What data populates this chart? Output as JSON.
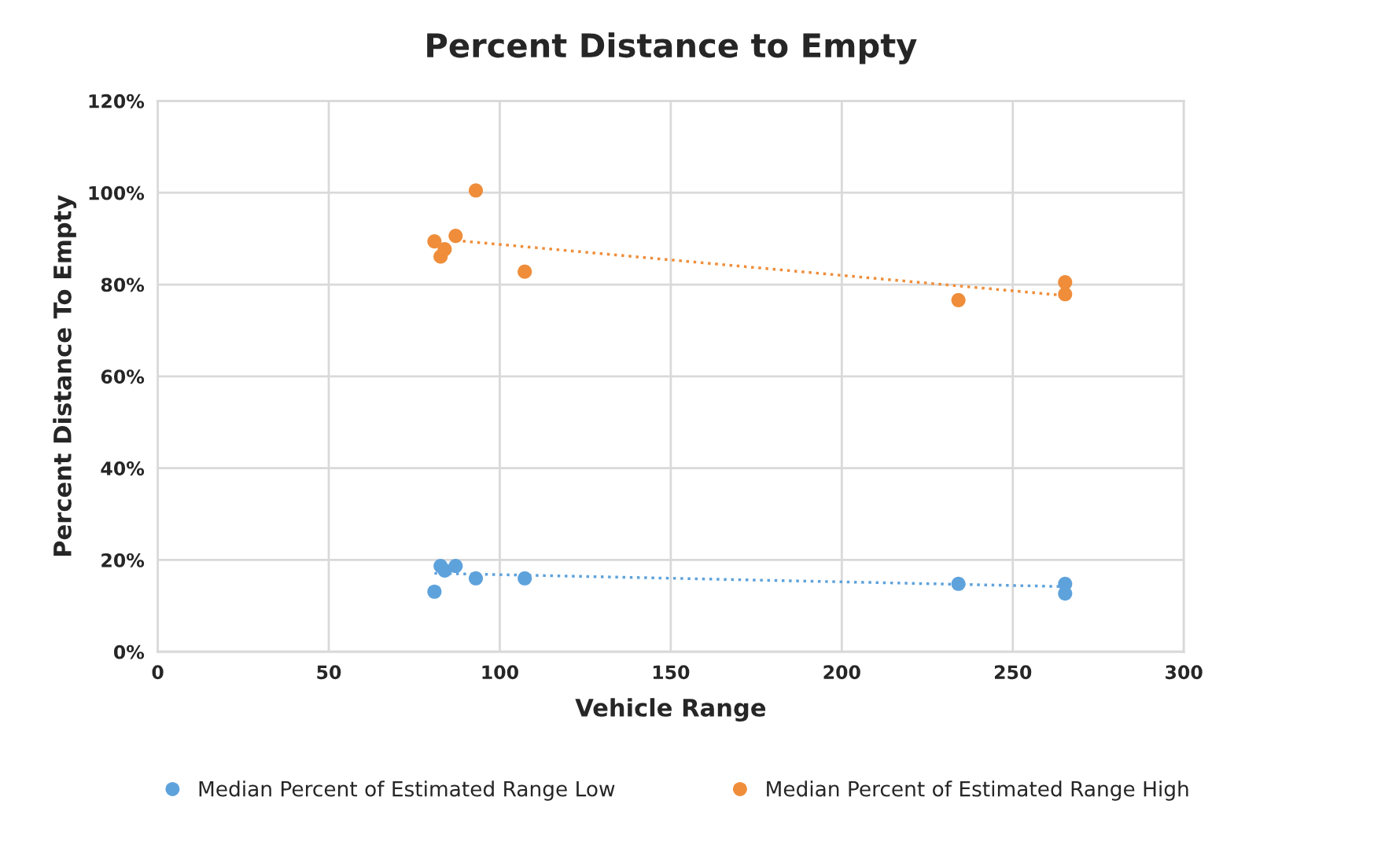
{
  "chart_data": {
    "type": "scatter",
    "title": "Percent Distance to Empty",
    "xlabel": "Vehicle Range",
    "ylabel": "Percent Distance To Empty",
    "xlim": [
      0,
      300
    ],
    "xticks": [
      0,
      50,
      100,
      150,
      200,
      250,
      300
    ],
    "ylim": [
      0,
      120
    ],
    "yticks": [
      {
        "value": 0,
        "label": "0%"
      },
      {
        "value": 20,
        "label": "20%"
      },
      {
        "value": 40,
        "label": "40%"
      },
      {
        "value": 60,
        "label": "60%"
      },
      {
        "value": 80,
        "label": "80%"
      },
      {
        "value": 100,
        "label": "100%"
      },
      {
        "value": 120,
        "label": "120%"
      }
    ],
    "grid": true,
    "legend": "bottom",
    "marker": "circle",
    "series": [
      {
        "name": "Median Percent of Estimated Range Low",
        "color": "#5ea2dc",
        "x": [
          80.9,
          82.7,
          83.9,
          87.1,
          93.0,
          107.3,
          234.1,
          265.3,
          265.3
        ],
        "values": [
          13.1,
          18.7,
          17.7,
          18.7,
          16.0,
          16.0,
          14.8,
          14.8,
          12.7
        ]
      },
      {
        "name": "Median Percent of Estimated Range High",
        "color": "#ef8d3a",
        "x": [
          80.9,
          82.7,
          83.9,
          87.1,
          93.0,
          107.3,
          234.1,
          265.3,
          265.3
        ],
        "values": [
          89.4,
          86.1,
          87.7,
          90.6,
          100.5,
          82.8,
          76.6,
          80.5,
          77.9
        ]
      },
      {
        "type": "line",
        "color": "#5ea2dc",
        "line_style": "dotted",
        "marker": "none",
        "x": [
          80.9,
          265.3
        ],
        "values": [
          17.1,
          14.2
        ]
      },
      {
        "type": "line",
        "color": "#ef8d3a",
        "line_style": "dotted",
        "marker": "none",
        "x": [
          87.1,
          265.3
        ],
        "values": [
          89.6,
          77.6
        ]
      }
    ]
  }
}
